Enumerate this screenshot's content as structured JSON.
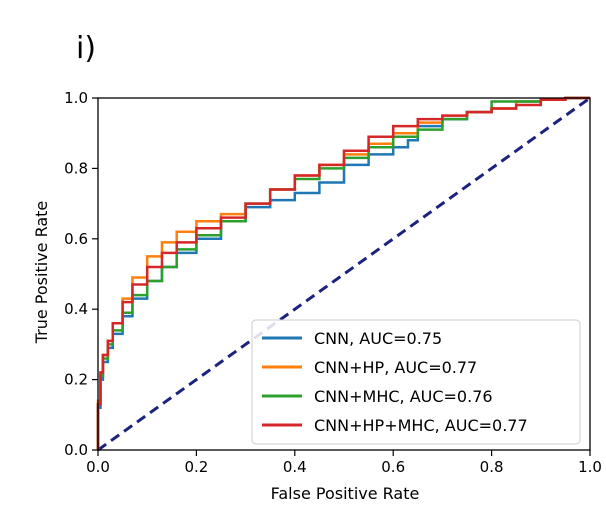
{
  "chart_data": {
    "type": "line",
    "panel_label": "i)",
    "xlabel": "False Positive Rate",
    "ylabel": "True Positive Rate",
    "xlim": [
      0.0,
      1.0
    ],
    "ylim": [
      0.0,
      1.0
    ],
    "xticks": [
      "0.0",
      "0.2",
      "0.4",
      "0.6",
      "0.8",
      "1.0"
    ],
    "yticks": [
      "0.0",
      "0.2",
      "0.4",
      "0.6",
      "0.8",
      "1.0"
    ],
    "grid": false,
    "legend_position": "lower-right",
    "reference_line": {
      "x": [
        0,
        1
      ],
      "y": [
        0,
        1
      ],
      "color": "#1a237e",
      "style": "dashed"
    },
    "series": [
      {
        "name": "CNN, AUC=0.75",
        "color": "#1f77b4",
        "x": [
          0.0,
          0.005,
          0.01,
          0.02,
          0.03,
          0.05,
          0.07,
          0.1,
          0.13,
          0.16,
          0.2,
          0.25,
          0.3,
          0.35,
          0.4,
          0.45,
          0.5,
          0.55,
          0.6,
          0.63,
          0.65,
          0.7,
          0.75,
          0.8,
          0.85,
          0.9,
          0.95,
          1.0
        ],
        "y": [
          0.0,
          0.12,
          0.2,
          0.25,
          0.29,
          0.33,
          0.38,
          0.43,
          0.48,
          0.52,
          0.56,
          0.6,
          0.65,
          0.69,
          0.71,
          0.73,
          0.76,
          0.81,
          0.84,
          0.86,
          0.88,
          0.92,
          0.94,
          0.96,
          0.97,
          0.99,
          0.995,
          1.0
        ]
      },
      {
        "name": "CNN+HP, AUC=0.77",
        "color": "#ff7f0e",
        "x": [
          0.0,
          0.005,
          0.01,
          0.02,
          0.03,
          0.05,
          0.07,
          0.1,
          0.13,
          0.16,
          0.2,
          0.25,
          0.3,
          0.35,
          0.4,
          0.45,
          0.5,
          0.55,
          0.6,
          0.65,
          0.7,
          0.75,
          0.8,
          0.85,
          0.9,
          0.95,
          1.0
        ],
        "y": [
          0.0,
          0.14,
          0.22,
          0.27,
          0.31,
          0.36,
          0.43,
          0.49,
          0.55,
          0.59,
          0.62,
          0.65,
          0.67,
          0.7,
          0.74,
          0.78,
          0.81,
          0.84,
          0.87,
          0.9,
          0.93,
          0.95,
          0.96,
          0.97,
          0.99,
          0.995,
          1.0
        ]
      },
      {
        "name": "CNN+MHC, AUC=0.76",
        "color": "#2ca02c",
        "x": [
          0.0,
          0.005,
          0.01,
          0.02,
          0.03,
          0.05,
          0.07,
          0.1,
          0.13,
          0.16,
          0.2,
          0.25,
          0.3,
          0.35,
          0.4,
          0.45,
          0.5,
          0.55,
          0.6,
          0.65,
          0.7,
          0.75,
          0.8,
          0.85,
          0.9,
          0.95,
          1.0
        ],
        "y": [
          0.0,
          0.13,
          0.21,
          0.26,
          0.3,
          0.34,
          0.39,
          0.44,
          0.48,
          0.52,
          0.57,
          0.61,
          0.65,
          0.7,
          0.74,
          0.77,
          0.8,
          0.83,
          0.86,
          0.89,
          0.91,
          0.94,
          0.96,
          0.99,
          0.99,
          0.995,
          1.0
        ]
      },
      {
        "name": "CNN+HP+MHC, AUC=0.77",
        "color": "#d62728",
        "x": [
          0.0,
          0.005,
          0.01,
          0.02,
          0.03,
          0.05,
          0.07,
          0.1,
          0.13,
          0.16,
          0.2,
          0.25,
          0.3,
          0.35,
          0.4,
          0.45,
          0.5,
          0.55,
          0.6,
          0.65,
          0.7,
          0.75,
          0.8,
          0.85,
          0.9,
          0.95,
          1.0
        ],
        "y": [
          0.0,
          0.13,
          0.22,
          0.27,
          0.31,
          0.36,
          0.42,
          0.47,
          0.52,
          0.56,
          0.59,
          0.63,
          0.66,
          0.7,
          0.74,
          0.78,
          0.81,
          0.85,
          0.89,
          0.92,
          0.94,
          0.95,
          0.96,
          0.97,
          0.98,
          0.995,
          1.0
        ]
      }
    ]
  }
}
